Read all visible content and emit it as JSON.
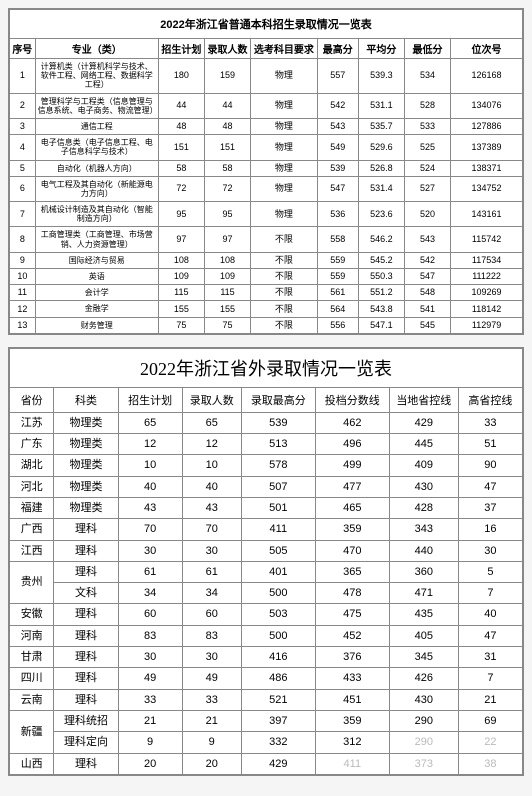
{
  "table1": {
    "title": "2022年浙江省普通本科招生录取情况一览表",
    "columns": [
      "序号",
      "专业（类）",
      "招生计划",
      "录取人数",
      "选考科目要求",
      "最高分",
      "平均分",
      "最低分",
      "位次号"
    ],
    "col_widths": [
      "5%",
      "24%",
      "9%",
      "9%",
      "13%",
      "8%",
      "9%",
      "9%",
      "14%"
    ],
    "rows": [
      {
        "no": "1",
        "major": "计算机类（计算机科学与技术、软件工程、网络工程、数据科学工程）",
        "plan": "180",
        "enroll": "159",
        "req": "物理",
        "max": "557",
        "avg": "539.3",
        "min": "534",
        "rank": "126168"
      },
      {
        "no": "2",
        "major": "管理科学与工程类（信息管理与信息系统、电子商务、物流管理）",
        "plan": "44",
        "enroll": "44",
        "req": "物理",
        "max": "542",
        "avg": "531.1",
        "min": "528",
        "rank": "134076"
      },
      {
        "no": "3",
        "major": "通信工程",
        "plan": "48",
        "enroll": "48",
        "req": "物理",
        "max": "543",
        "avg": "535.7",
        "min": "533",
        "rank": "127886"
      },
      {
        "no": "4",
        "major": "电子信息类（电子信息工程、电子信息科学与技术）",
        "plan": "151",
        "enroll": "151",
        "req": "物理",
        "max": "549",
        "avg": "529.6",
        "min": "525",
        "rank": "137389"
      },
      {
        "no": "5",
        "major": "自动化（机器人方向）",
        "plan": "58",
        "enroll": "58",
        "req": "物理",
        "max": "539",
        "avg": "526.8",
        "min": "524",
        "rank": "138371"
      },
      {
        "no": "6",
        "major": "电气工程及其自动化（新能源电力方向）",
        "plan": "72",
        "enroll": "72",
        "req": "物理",
        "max": "547",
        "avg": "531.4",
        "min": "527",
        "rank": "134752"
      },
      {
        "no": "7",
        "major": "机械设计制造及其自动化（智能制造方向）",
        "plan": "95",
        "enroll": "95",
        "req": "物理",
        "max": "536",
        "avg": "523.6",
        "min": "520",
        "rank": "143161"
      },
      {
        "no": "8",
        "major": "工商管理类（工商管理、市场营销、人力资源管理）",
        "plan": "97",
        "enroll": "97",
        "req": "不限",
        "max": "558",
        "avg": "546.2",
        "min": "543",
        "rank": "115742"
      },
      {
        "no": "9",
        "major": "国际经济与贸易",
        "plan": "108",
        "enroll": "108",
        "req": "不限",
        "max": "559",
        "avg": "545.2",
        "min": "542",
        "rank": "117534"
      },
      {
        "no": "10",
        "major": "英语",
        "plan": "109",
        "enroll": "109",
        "req": "不限",
        "max": "559",
        "avg": "550.3",
        "min": "547",
        "rank": "111222"
      },
      {
        "no": "11",
        "major": "会计学",
        "plan": "115",
        "enroll": "115",
        "req": "不限",
        "max": "561",
        "avg": "551.2",
        "min": "548",
        "rank": "109269"
      },
      {
        "no": "12",
        "major": "金融学",
        "plan": "155",
        "enroll": "155",
        "req": "不限",
        "max": "564",
        "avg": "543.8",
        "min": "541",
        "rank": "118142"
      },
      {
        "no": "13",
        "major": "财务管理",
        "plan": "75",
        "enroll": "75",
        "req": "不限",
        "max": "556",
        "avg": "547.1",
        "min": "545",
        "rank": "112979"
      }
    ]
  },
  "table2": {
    "title": "2022年浙江省外录取情况一览表",
    "columns": [
      "省份",
      "科类",
      "招生计划",
      "录取人数",
      "录取最高分",
      "投档分数线",
      "当地省控线",
      "高省控线"
    ],
    "col_widths": [
      "9%",
      "13%",
      "13%",
      "12%",
      "15%",
      "15%",
      "14%",
      "13%"
    ],
    "rows": [
      {
        "prov": "江苏",
        "rowspan": 1,
        "sub": "物理类",
        "plan": "65",
        "enroll": "65",
        "max": "539",
        "line": "462",
        "ctrl": "429",
        "diff": "33"
      },
      {
        "prov": "广东",
        "rowspan": 1,
        "sub": "物理类",
        "plan": "12",
        "enroll": "12",
        "max": "513",
        "line": "496",
        "ctrl": "445",
        "diff": "51"
      },
      {
        "prov": "湖北",
        "rowspan": 1,
        "sub": "物理类",
        "plan": "10",
        "enroll": "10",
        "max": "578",
        "line": "499",
        "ctrl": "409",
        "diff": "90"
      },
      {
        "prov": "河北",
        "rowspan": 1,
        "sub": "物理类",
        "plan": "40",
        "enroll": "40",
        "max": "507",
        "line": "477",
        "ctrl": "430",
        "diff": "47"
      },
      {
        "prov": "福建",
        "rowspan": 1,
        "sub": "物理类",
        "plan": "43",
        "enroll": "43",
        "max": "501",
        "line": "465",
        "ctrl": "428",
        "diff": "37"
      },
      {
        "prov": "广西",
        "rowspan": 1,
        "sub": "理科",
        "plan": "70",
        "enroll": "70",
        "max": "411",
        "line": "359",
        "ctrl": "343",
        "diff": "16"
      },
      {
        "prov": "江西",
        "rowspan": 1,
        "sub": "理科",
        "plan": "30",
        "enroll": "30",
        "max": "505",
        "line": "470",
        "ctrl": "440",
        "diff": "30"
      },
      {
        "prov": "贵州",
        "rowspan": 2,
        "sub": "理科",
        "plan": "61",
        "enroll": "61",
        "max": "401",
        "line": "365",
        "ctrl": "360",
        "diff": "5"
      },
      {
        "prov": "",
        "rowspan": 0,
        "sub": "文科",
        "plan": "34",
        "enroll": "34",
        "max": "500",
        "line": "478",
        "ctrl": "471",
        "diff": "7"
      },
      {
        "prov": "安徽",
        "rowspan": 1,
        "sub": "理科",
        "plan": "60",
        "enroll": "60",
        "max": "503",
        "line": "475",
        "ctrl": "435",
        "diff": "40"
      },
      {
        "prov": "河南",
        "rowspan": 1,
        "sub": "理科",
        "plan": "83",
        "enroll": "83",
        "max": "500",
        "line": "452",
        "ctrl": "405",
        "diff": "47"
      },
      {
        "prov": "甘肃",
        "rowspan": 1,
        "sub": "理科",
        "plan": "30",
        "enroll": "30",
        "max": "416",
        "line": "376",
        "ctrl": "345",
        "diff": "31"
      },
      {
        "prov": "四川",
        "rowspan": 1,
        "sub": "理科",
        "plan": "49",
        "enroll": "49",
        "max": "486",
        "line": "433",
        "ctrl": "426",
        "diff": "7"
      },
      {
        "prov": "云南",
        "rowspan": 1,
        "sub": "理科",
        "plan": "33",
        "enroll": "33",
        "max": "521",
        "line": "451",
        "ctrl": "430",
        "diff": "21"
      },
      {
        "prov": "新疆",
        "rowspan": 2,
        "sub": "理科统招",
        "plan": "21",
        "enroll": "21",
        "max": "397",
        "line": "359",
        "ctrl": "290",
        "diff": "69"
      },
      {
        "prov": "",
        "rowspan": 0,
        "sub": "理科定向",
        "plan": "9",
        "enroll": "9",
        "max": "332",
        "line": "312",
        "ctrl": "290",
        "diff": "22",
        "faded_ctrl": true,
        "faded_diff": true
      },
      {
        "prov": "山西",
        "rowspan": 1,
        "sub": "理科",
        "plan": "20",
        "enroll": "20",
        "max": "429",
        "line": "411",
        "ctrl": "373",
        "diff": "38",
        "faded_line": true,
        "faded_ctrl": true,
        "faded_diff": true
      }
    ]
  }
}
